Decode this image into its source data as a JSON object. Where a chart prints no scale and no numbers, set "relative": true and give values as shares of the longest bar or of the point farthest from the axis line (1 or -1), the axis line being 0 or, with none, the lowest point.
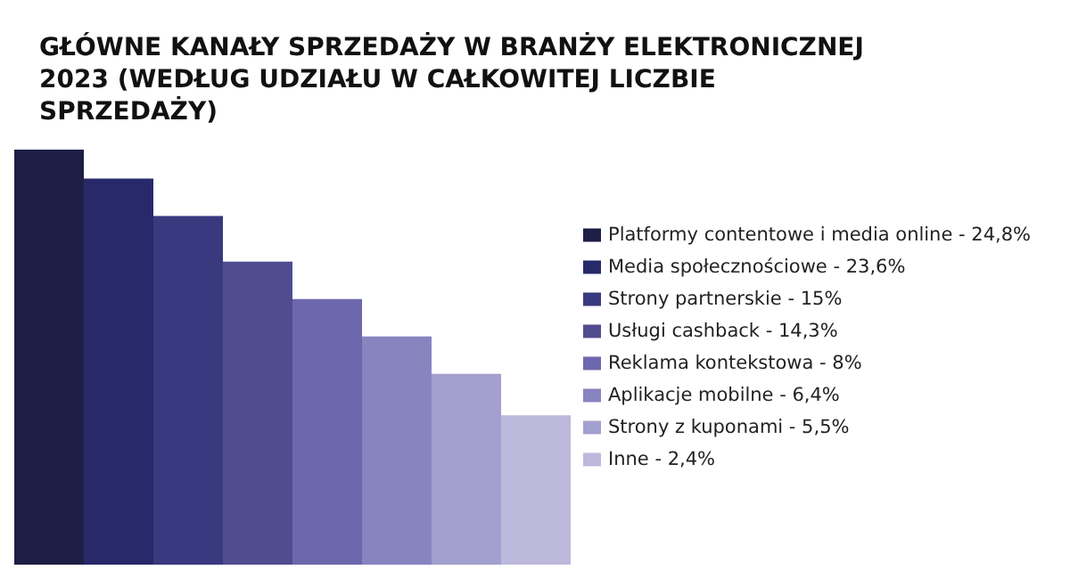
{
  "chart_data": {
    "type": "bar",
    "title": "GŁÓWNE KANAŁY SPRZEDAŻY W BRANŻY ELEKTRONICZNEJ 2023 (WEDŁUG UDZIAŁU W CAŁKOWITEJ LICZBIE SPRZEDAŻY)",
    "categories": [
      null
    ],
    "relative": true,
    "series": [
      {
        "name": "Platformy contentowe i media online - 24,8%",
        "color": "#1e1f45",
        "values": [
          1
        ]
      },
      {
        "name": "Media społecznościowe - 23,6%",
        "color": "#27296a",
        "values": [
          0.93
        ]
      },
      {
        "name": "Strony partnerskie - 15%",
        "color": "#38397e",
        "values": [
          0.84
        ]
      },
      {
        "name": "Usługi cashback - 14,3%",
        "color": "#514c8f",
        "values": [
          0.73
        ]
      },
      {
        "name": "Reklama kontekstowa - 8%",
        "color": "#6d68ad",
        "values": [
          0.64
        ]
      },
      {
        "name": "Aplikacje mobilne - 6,4%",
        "color": "#8884c0",
        "values": [
          0.55
        ]
      },
      {
        "name": "Strony z kuponami - 5,5%",
        "color": "#a3a0cf",
        "values": [
          0.46
        ]
      },
      {
        "name": "Inne - 2,4%",
        "color": "#bcb9dc",
        "values": [
          0.36
        ]
      }
    ],
    "legend": "right",
    "tick_labels": false
  }
}
